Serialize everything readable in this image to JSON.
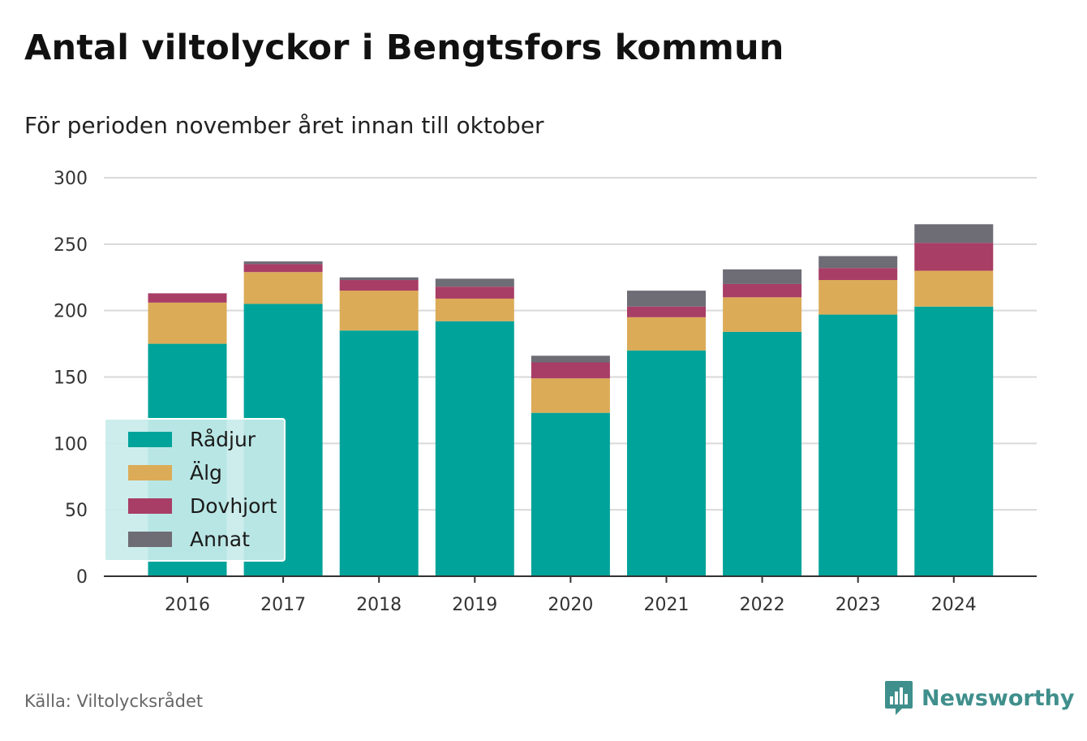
{
  "header": {
    "title": "Antal viltolyckor i Bengtsfors kommun",
    "subtitle": "För perioden november året innan till oktober"
  },
  "footer": {
    "source": "Källa: Viltolycksrådet",
    "brand": "Newsworthy"
  },
  "icons": {
    "brand_logo": "bar-chart-speech-bubble-icon"
  },
  "colors": {
    "radjur": "#00a39a",
    "alg": "#dbab57",
    "dovhjort": "#a83d65",
    "annat": "#6e6c75",
    "brand": "#3f8f8c"
  },
  "chart_data": {
    "type": "bar",
    "stacked": true,
    "categories": [
      "2016",
      "2017",
      "2018",
      "2019",
      "2020",
      "2021",
      "2022",
      "2023",
      "2024"
    ],
    "series": [
      {
        "name": "Rådjur",
        "color": "#00a39a",
        "values": [
          175,
          205,
          185,
          192,
          123,
          170,
          184,
          197,
          203
        ]
      },
      {
        "name": "Älg",
        "color": "#dbab57",
        "values": [
          31,
          24,
          30,
          17,
          26,
          25,
          26,
          26,
          27
        ]
      },
      {
        "name": "Dovhjort",
        "color": "#a83d65",
        "values": [
          7,
          6,
          8,
          9,
          12,
          8,
          10,
          9,
          21
        ]
      },
      {
        "name": "Annat",
        "color": "#6e6c75",
        "values": [
          0,
          2,
          2,
          6,
          5,
          12,
          11,
          9,
          14
        ]
      }
    ],
    "ylim": [
      0,
      300
    ],
    "yticks": [
      "0",
      "50",
      "100",
      "150",
      "200",
      "250",
      "300"
    ],
    "ytick_values": [
      0,
      50,
      100,
      150,
      200,
      250,
      300
    ],
    "grid": true,
    "legend_position": "bottom-left"
  }
}
